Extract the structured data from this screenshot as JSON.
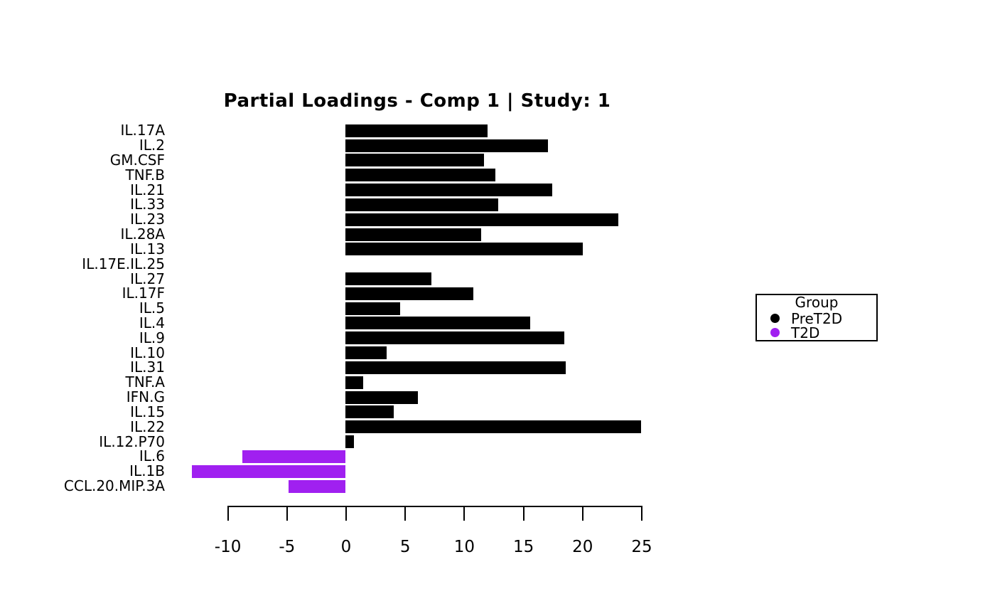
{
  "title": "Partial Loadings - Comp 1 | Study: 1",
  "legend": {
    "title": "Group",
    "entries": [
      {
        "label": "PreT2D",
        "color": "#000000"
      },
      {
        "label": "T2D",
        "color": "#A020F0"
      }
    ]
  },
  "chart_data": {
    "type": "bar",
    "orientation": "horizontal",
    "title": "Partial Loadings - Comp 1 | Study: 1",
    "categories": [
      "IL.17A",
      "IL.2",
      "GM.CSF",
      "TNF.B",
      "IL.21",
      "IL.33",
      "IL.23",
      "IL.28A",
      "IL.13",
      "IL.17E.IL.25",
      "IL.27",
      "IL.17F",
      "IL.5",
      "IL.4",
      "IL.9",
      "IL.10",
      "IL.31",
      "TNF.A",
      "IFN.G",
      "IL.15",
      "IL.22",
      "IL.12.P70",
      "IL.6",
      "IL.1B",
      "CCL.20.MIP.3A"
    ],
    "values": [
      12.0,
      17.1,
      11.7,
      12.7,
      17.5,
      12.9,
      23.1,
      11.5,
      20.1,
      0,
      7.3,
      10.8,
      4.6,
      15.6,
      18.5,
      3.5,
      18.6,
      1.5,
      6.1,
      4.1,
      25.0,
      0.7,
      -8.7,
      -13.0,
      -4.8
    ],
    "groups": [
      "PreT2D",
      "PreT2D",
      "PreT2D",
      "PreT2D",
      "PreT2D",
      "PreT2D",
      "PreT2D",
      "PreT2D",
      "PreT2D",
      "PreT2D",
      "PreT2D",
      "PreT2D",
      "PreT2D",
      "PreT2D",
      "PreT2D",
      "PreT2D",
      "PreT2D",
      "PreT2D",
      "PreT2D",
      "PreT2D",
      "PreT2D",
      "PreT2D",
      "T2D",
      "T2D",
      "T2D"
    ],
    "group_colors": {
      "PreT2D": "#000000",
      "T2D": "#A020F0"
    },
    "x_ticks": [
      -10,
      -5,
      0,
      5,
      10,
      15,
      20,
      25
    ],
    "xlim": [
      -13.5,
      25.2
    ],
    "xlabel": "",
    "ylabel": "",
    "grid": false,
    "legend_position": "right"
  }
}
